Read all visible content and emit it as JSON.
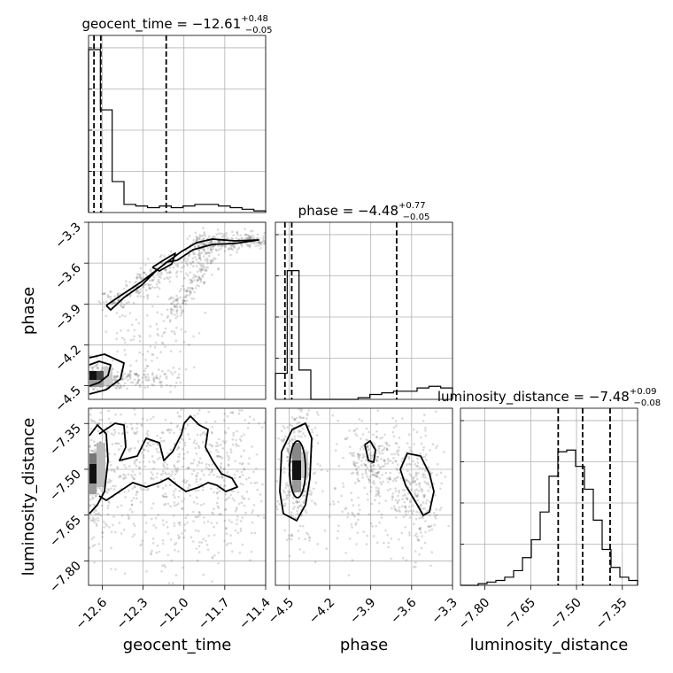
{
  "chart_data": {
    "type": "corner",
    "parameters": [
      "geocent_time",
      "phase",
      "luminosity_distance"
    ],
    "axis_labels": [
      "geocent_time",
      "phase",
      "luminosity_distance"
    ],
    "ranges": [
      [
        -12.7,
        -11.4
      ],
      [
        -4.6,
        -3.3
      ],
      [
        -7.88,
        -7.3
      ]
    ],
    "ticks": [
      [
        "−12.6",
        "−12.3",
        "−12.0",
        "−11.7",
        "−11.4"
      ],
      [
        "−4.5",
        "−4.2",
        "−3.9",
        "−3.6",
        "−3.3"
      ],
      [
        "−7.80",
        "−7.65",
        "−7.50",
        "−7.35"
      ]
    ],
    "tick_values": [
      [
        -12.6,
        -12.3,
        -12.0,
        -11.7,
        -11.4
      ],
      [
        -4.5,
        -4.2,
        -3.9,
        -3.6,
        -3.3
      ],
      [
        -7.8,
        -7.65,
        -7.5,
        -7.35
      ]
    ],
    "titles": [
      {
        "param": "geocent_time",
        "median": "−12.61",
        "plus": "+0.48",
        "minus": "−0.05"
      },
      {
        "param": "phase",
        "median": "−4.48",
        "plus": "+0.77",
        "minus": "−0.05"
      },
      {
        "param": "luminosity_distance",
        "median": "−7.48",
        "plus": "+0.09",
        "minus": "−0.08"
      }
    ],
    "quantiles": [
      [
        -12.66,
        -12.61,
        -12.13
      ],
      [
        -4.53,
        -4.48,
        -3.71
      ],
      [
        -7.56,
        -7.48,
        -7.39
      ]
    ],
    "histograms": [
      [
        1.0,
        0.63,
        0.19,
        0.05,
        0.04,
        0.03,
        0.04,
        0.03,
        0.04,
        0.05,
        0.05,
        0.04,
        0.03,
        0.02,
        0.01
      ],
      [
        0.16,
        0.79,
        0.18,
        0.0,
        0.0,
        0.0,
        0.0,
        0.01,
        0.03,
        0.04,
        0.05,
        0.05,
        0.07,
        0.08,
        0.07
      ],
      [
        0.0,
        0.0,
        0.01,
        0.02,
        0.03,
        0.05,
        0.09,
        0.17,
        0.28,
        0.45,
        0.67,
        0.82,
        0.83,
        0.73,
        0.59,
        0.4,
        0.22,
        0.11,
        0.05,
        0.03
      ]
    ],
    "grid": true,
    "legend": "none"
  }
}
